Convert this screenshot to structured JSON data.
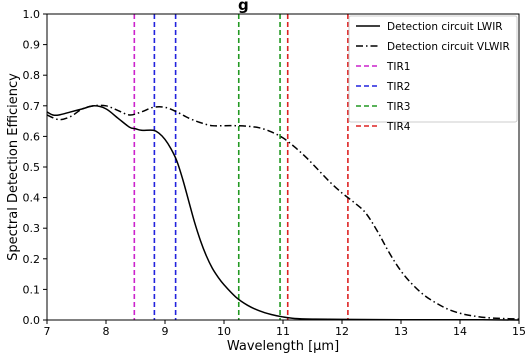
{
  "title_partial": "g",
  "chart_data": {
    "type": "line",
    "xlabel": "Wavelength [μm]",
    "ylabel": "Spectral Detection Efficiency",
    "xlim": [
      7,
      15
    ],
    "ylim": [
      0.0,
      1.0
    ],
    "xticks": [
      "7",
      "8",
      "9",
      "10",
      "11",
      "12",
      "13",
      "14",
      "15"
    ],
    "yticks": [
      "0.0",
      "0.1",
      "0.2",
      "0.3",
      "0.4",
      "0.5",
      "0.6",
      "0.7",
      "0.8",
      "0.9",
      "1.0"
    ],
    "grid": false,
    "legend_position": "top-right",
    "series": [
      {
        "name": "Detection circuit LWIR",
        "color": "#000000",
        "dash": "solid",
        "x": [
          7.0,
          7.1,
          7.2,
          7.4,
          7.6,
          7.8,
          8.0,
          8.2,
          8.4,
          8.5,
          8.6,
          8.8,
          8.9,
          9.0,
          9.1,
          9.2,
          9.3,
          9.4,
          9.5,
          9.6,
          9.7,
          9.8,
          9.9,
          10.0,
          10.2,
          10.4,
          10.6,
          10.8,
          11.0,
          11.2,
          11.5,
          12.0,
          13.0,
          14.0,
          15.0
        ],
        "y": [
          0.68,
          0.67,
          0.67,
          0.68,
          0.69,
          0.7,
          0.69,
          0.66,
          0.63,
          0.625,
          0.62,
          0.62,
          0.61,
          0.59,
          0.56,
          0.52,
          0.46,
          0.39,
          0.32,
          0.26,
          0.21,
          0.17,
          0.14,
          0.115,
          0.075,
          0.048,
          0.03,
          0.018,
          0.01,
          0.005,
          0.003,
          0.002,
          0.001,
          0.001,
          0.0
        ]
      },
      {
        "name": "Detection circuit VLWIR",
        "color": "#000000",
        "dash": "dashdot",
        "x": [
          7.0,
          7.2,
          7.4,
          7.6,
          7.8,
          8.0,
          8.2,
          8.4,
          8.6,
          8.8,
          9.0,
          9.2,
          9.4,
          9.6,
          9.8,
          10.0,
          10.2,
          10.4,
          10.6,
          10.8,
          11.0,
          11.2,
          11.4,
          11.6,
          11.8,
          12.0,
          12.2,
          12.4,
          12.6,
          12.8,
          13.0,
          13.2,
          13.4,
          13.6,
          13.8,
          14.0,
          14.2,
          14.5,
          15.0
        ],
        "y": [
          0.67,
          0.655,
          0.665,
          0.69,
          0.7,
          0.7,
          0.685,
          0.67,
          0.68,
          0.695,
          0.695,
          0.68,
          0.66,
          0.645,
          0.635,
          0.635,
          0.635,
          0.633,
          0.628,
          0.615,
          0.595,
          0.565,
          0.53,
          0.49,
          0.45,
          0.415,
          0.385,
          0.35,
          0.29,
          0.22,
          0.16,
          0.115,
          0.08,
          0.055,
          0.035,
          0.022,
          0.014,
          0.007,
          0.003
        ]
      }
    ],
    "vlines": [
      {
        "name": "TIR1",
        "color": "#cc22cc",
        "x": [
          8.48
        ]
      },
      {
        "name": "TIR2",
        "color": "#2222dd",
        "x": [
          8.82,
          9.18
        ]
      },
      {
        "name": "TIR3",
        "color": "#229922",
        "x": [
          10.25,
          10.95
        ]
      },
      {
        "name": "TIR4",
        "color": "#dd2222",
        "x": [
          11.08,
          12.1
        ]
      }
    ]
  }
}
